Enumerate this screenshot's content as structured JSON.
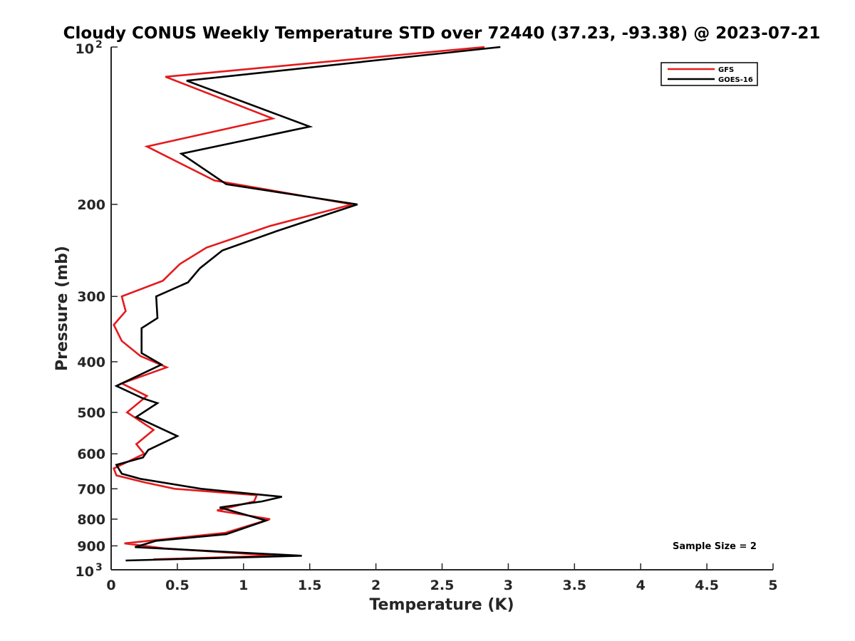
{
  "chart_data": {
    "type": "line",
    "title": "Cloudy CONUS Weekly Temperature STD over 72440 (37.23, -93.38) @ 2023-07-21",
    "xlabel": "Temperature (K)",
    "ylabel": "Pressure (mb)",
    "xlim": [
      0,
      5
    ],
    "ylim": [
      100,
      1000
    ],
    "y_scale": "log",
    "y_reversed": true,
    "grid": false,
    "legend_position": "top-right",
    "x_ticks": [
      "0",
      "0.5",
      "1",
      "1.5",
      "2",
      "2.5",
      "3",
      "3.5",
      "4",
      "4.5",
      "5"
    ],
    "y_ticks": [
      {
        "value": 100,
        "base": "10",
        "exp": "2"
      },
      {
        "value": 200,
        "label": "200"
      },
      {
        "value": 300,
        "label": "300"
      },
      {
        "value": 400,
        "label": "400"
      },
      {
        "value": 500,
        "label": "500"
      },
      {
        "value": 600,
        "label": "600"
      },
      {
        "value": 700,
        "label": "700"
      },
      {
        "value": 800,
        "label": "800"
      },
      {
        "value": 900,
        "label": "900"
      },
      {
        "value": 1000,
        "base": "10",
        "exp": "3"
      }
    ],
    "annotation": "Sample Size = 2",
    "series": [
      {
        "name": "GFS",
        "color": "#e41a1c",
        "points": [
          [
            2.82,
            100
          ],
          [
            0.41,
            114
          ],
          [
            1.22,
            137
          ],
          [
            0.27,
            155
          ],
          [
            0.78,
            180
          ],
          [
            1.82,
            200
          ],
          [
            1.2,
            220
          ],
          [
            0.72,
            242
          ],
          [
            0.52,
            260
          ],
          [
            0.39,
            280
          ],
          [
            0.08,
            300
          ],
          [
            0.11,
            320
          ],
          [
            0.02,
            340
          ],
          [
            0.08,
            365
          ],
          [
            0.22,
            390
          ],
          [
            0.42,
            410
          ],
          [
            0.08,
            440
          ],
          [
            0.27,
            465
          ],
          [
            0.12,
            500
          ],
          [
            0.32,
            540
          ],
          [
            0.19,
            575
          ],
          [
            0.25,
            600
          ],
          [
            0.02,
            640
          ],
          [
            0.04,
            660
          ],
          [
            0.25,
            680
          ],
          [
            0.48,
            700
          ],
          [
            1.1,
            720
          ],
          [
            1.08,
            740
          ],
          [
            0.8,
            770
          ],
          [
            1.2,
            800
          ],
          [
            0.86,
            850
          ],
          [
            0.1,
            890
          ],
          [
            0.4,
            910
          ],
          [
            1.25,
            940
          ],
          [
            0.32,
            955
          ]
        ]
      },
      {
        "name": "GOES-16",
        "color": "#000000",
        "points": [
          [
            2.94,
            100
          ],
          [
            0.57,
            116
          ],
          [
            1.5,
            142
          ],
          [
            0.53,
            160
          ],
          [
            0.87,
            183
          ],
          [
            1.86,
            200
          ],
          [
            1.25,
            225
          ],
          [
            0.84,
            245
          ],
          [
            0.67,
            265
          ],
          [
            0.58,
            282
          ],
          [
            0.34,
            300
          ],
          [
            0.35,
            330
          ],
          [
            0.23,
            345
          ],
          [
            0.23,
            385
          ],
          [
            0.38,
            405
          ],
          [
            0.04,
            445
          ],
          [
            0.24,
            470
          ],
          [
            0.35,
            480
          ],
          [
            0.19,
            510
          ],
          [
            0.5,
            555
          ],
          [
            0.28,
            590
          ],
          [
            0.24,
            610
          ],
          [
            0.04,
            630
          ],
          [
            0.08,
            655
          ],
          [
            0.22,
            670
          ],
          [
            0.68,
            700
          ],
          [
            1.29,
            725
          ],
          [
            1.14,
            740
          ],
          [
            0.82,
            760
          ],
          [
            1.17,
            805
          ],
          [
            0.87,
            855
          ],
          [
            0.34,
            880
          ],
          [
            0.18,
            905
          ],
          [
            1.44,
            940
          ],
          [
            0.11,
            960
          ]
        ]
      }
    ]
  }
}
